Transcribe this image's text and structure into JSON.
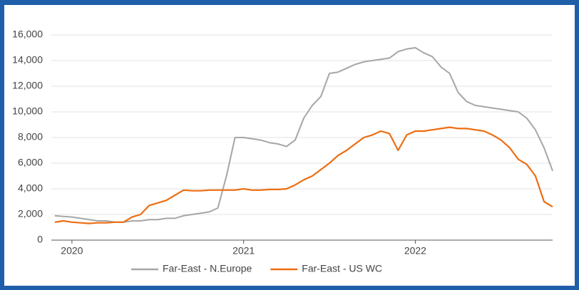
{
  "chart_data": {
    "type": "line",
    "x": [
      2019.9,
      2019.95,
      2020.0,
      2020.05,
      2020.1,
      2020.15,
      2020.2,
      2020.25,
      2020.3,
      2020.35,
      2020.4,
      2020.45,
      2020.5,
      2020.55,
      2020.6,
      2020.65,
      2020.7,
      2020.75,
      2020.8,
      2020.85,
      2020.9,
      2020.95,
      2021.0,
      2021.05,
      2021.1,
      2021.15,
      2021.2,
      2021.25,
      2021.3,
      2021.35,
      2021.4,
      2021.45,
      2021.5,
      2021.55,
      2021.6,
      2021.65,
      2021.7,
      2021.75,
      2021.8,
      2021.85,
      2021.9,
      2021.95,
      2022.0,
      2022.05,
      2022.1,
      2022.15,
      2022.2,
      2022.25,
      2022.3,
      2022.35,
      2022.4,
      2022.45,
      2022.5,
      2022.55,
      2022.6,
      2022.65,
      2022.7,
      2022.75,
      2022.8
    ],
    "series": [
      {
        "name": "Far-East - N.Europe",
        "color": "#a6a6a6",
        "values": [
          1900,
          1850,
          1800,
          1700,
          1600,
          1500,
          1500,
          1400,
          1400,
          1500,
          1500,
          1600,
          1600,
          1700,
          1700,
          1900,
          2000,
          2100,
          2200,
          2500,
          5000,
          8000,
          8000,
          7900,
          7800,
          7600,
          7500,
          7300,
          7800,
          9500,
          10500,
          11200,
          13000,
          13100,
          13400,
          13700,
          13900,
          14000,
          14100,
          14200,
          14700,
          14900,
          15000,
          14600,
          14300,
          13500,
          13000,
          11500,
          10800,
          10500,
          10400,
          10300,
          10200,
          10100,
          10000,
          9500,
          8600,
          7200,
          5400
        ]
      },
      {
        "name": "Far-East - US WC",
        "color": "#ee6d12",
        "values": [
          1400,
          1500,
          1400,
          1350,
          1300,
          1350,
          1350,
          1400,
          1400,
          1800,
          2000,
          2700,
          2900,
          3100,
          3500,
          3900,
          3850,
          3850,
          3900,
          3900,
          3900,
          3900,
          4000,
          3900,
          3900,
          3950,
          3950,
          4000,
          4300,
          4700,
          5000,
          5500,
          6000,
          6600,
          7000,
          7500,
          8000,
          8200,
          8500,
          8300,
          7000,
          8200,
          8500,
          8500,
          8600,
          8700,
          8800,
          8700,
          8700,
          8600,
          8500,
          8200,
          7800,
          7200,
          6300,
          5900,
          5000,
          3000,
          2600
        ]
      }
    ],
    "xlim": [
      2019.88,
      2022.8
    ],
    "xticks": [
      2020,
      2021,
      2022
    ],
    "ylim": [
      0,
      16000
    ],
    "yticks": [
      0,
      {
        "value": 2000,
        "label": "2,000"
      },
      {
        "value": 4000,
        "label": "4,000"
      },
      {
        "value": 6000,
        "label": "6,000"
      },
      {
        "value": 8000,
        "label": "8,000"
      },
      {
        "value": 10000,
        "label": "10,000"
      },
      {
        "value": 12000,
        "label": "12,000"
      },
      {
        "value": 14000,
        "label": "14,000"
      },
      {
        "value": 16000,
        "label": "16,000"
      }
    ],
    "grid": true,
    "legend": "bottom"
  }
}
